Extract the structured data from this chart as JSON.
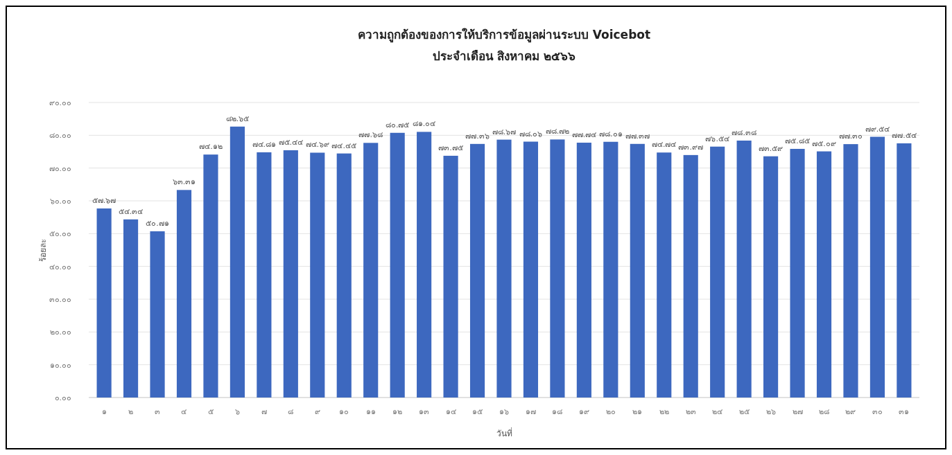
{
  "chart_data": {
    "type": "bar",
    "title": "ความถูกต้องของการให้บริการข้อมูลผ่านระบบ Voicebot",
    "subtitle": "ประจำเดือน สิงหาคม ๒๕๖๖",
    "xlabel": "วันที่",
    "ylabel": "ร้อยละ",
    "categories": [
      "๑",
      "๒",
      "๓",
      "๔",
      "๕",
      "๖",
      "๗",
      "๘",
      "๙",
      "๑๐",
      "๑๑",
      "๑๒",
      "๑๓",
      "๑๔",
      "๑๕",
      "๑๖",
      "๑๗",
      "๑๘",
      "๑๙",
      "๒๐",
      "๒๑",
      "๒๒",
      "๒๓",
      "๒๔",
      "๒๕",
      "๒๖",
      "๒๗",
      "๒๘",
      "๒๙",
      "๓๐",
      "๓๑"
    ],
    "values": [
      57.67,
      54.34,
      50.71,
      63.31,
      74.12,
      82.65,
      74.81,
      75.44,
      74.69,
      74.45,
      77.68,
      80.75,
      81.04,
      73.75,
      77.36,
      78.67,
      78.06,
      78.72,
      77.74,
      78.01,
      77.37,
      74.74,
      73.97,
      76.54,
      78.38,
      73.59,
      75.85,
      75.09,
      77.3,
      79.54,
      77.54
    ],
    "value_labels": [
      "๕๗.๖๗",
      "๕๔.๓๔",
      "๕๐.๗๑",
      "๖๓.๓๑",
      "๗๔.๑๒",
      "๘๒.๖๕",
      "๗๔.๘๑",
      "๗๕.๔๔",
      "๗๔.๖๙",
      "๗๔.๔๕",
      "๗๗.๖๘",
      "๘๐.๗๕",
      "๘๑.๐๔",
      "๗๓.๗๕",
      "๗๗.๓๖",
      "๗๘.๖๗",
      "๗๘.๐๖",
      "๗๘.๗๒",
      "๗๗.๗๔",
      "๗๘.๐๑",
      "๗๗.๓๗",
      "๗๔.๗๔",
      "๗๓.๙๗",
      "๗๖.๕๔",
      "๗๘.๓๘",
      "๗๓.๕๙",
      "๗๕.๘๕",
      "๗๕.๐๙",
      "๗๗.๓๐",
      "๗๙.๕๔",
      "๗๗.๕๔"
    ],
    "color": "#3d68bf",
    "ylim": [
      0,
      90
    ],
    "yticks": [
      {
        "value": 0,
        "label": "๐.๐๐"
      },
      {
        "value": 10,
        "label": "๑๐.๐๐"
      },
      {
        "value": 20,
        "label": "๒๐.๐๐"
      },
      {
        "value": 30,
        "label": "๓๐.๐๐"
      },
      {
        "value": 40,
        "label": "๔๐.๐๐"
      },
      {
        "value": 50,
        "label": "๕๐.๐๐"
      },
      {
        "value": 60,
        "label": "๖๐.๐๐"
      },
      {
        "value": 70,
        "label": "๗๐.๐๐"
      },
      {
        "value": 80,
        "label": "๘๐.๐๐"
      },
      {
        "value": 90,
        "label": "๙๐.๐๐"
      }
    ],
    "grid": "y"
  }
}
